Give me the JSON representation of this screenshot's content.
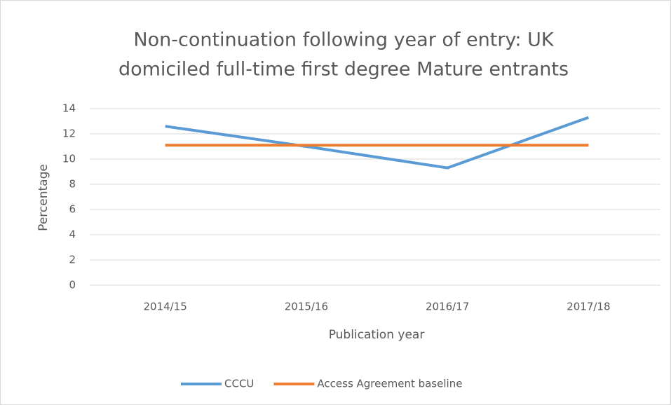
{
  "chart_data": {
    "type": "line",
    "title": [
      "Non-continuation following year of entry: UK",
      "domiciled full-time first degree Mature entrants"
    ],
    "x_label": "Publication year",
    "y_label": "Percentage",
    "categories": [
      "2014/15",
      "2015/16",
      "2016/17",
      "2017/18"
    ],
    "series": [
      {
        "name": "CCCU",
        "color": "#5b9bd5",
        "values": [
          12.6,
          11.0,
          9.3,
          13.3
        ]
      },
      {
        "name": "Access Agreement baseline",
        "color": "#ed7d31",
        "values": [
          11.1,
          11.1,
          11.1,
          11.1
        ]
      }
    ],
    "ylim": [
      0,
      14
    ],
    "yticks": [
      0,
      2,
      4,
      6,
      8,
      10,
      12,
      14
    ],
    "grid": true,
    "legend": "bottom"
  }
}
